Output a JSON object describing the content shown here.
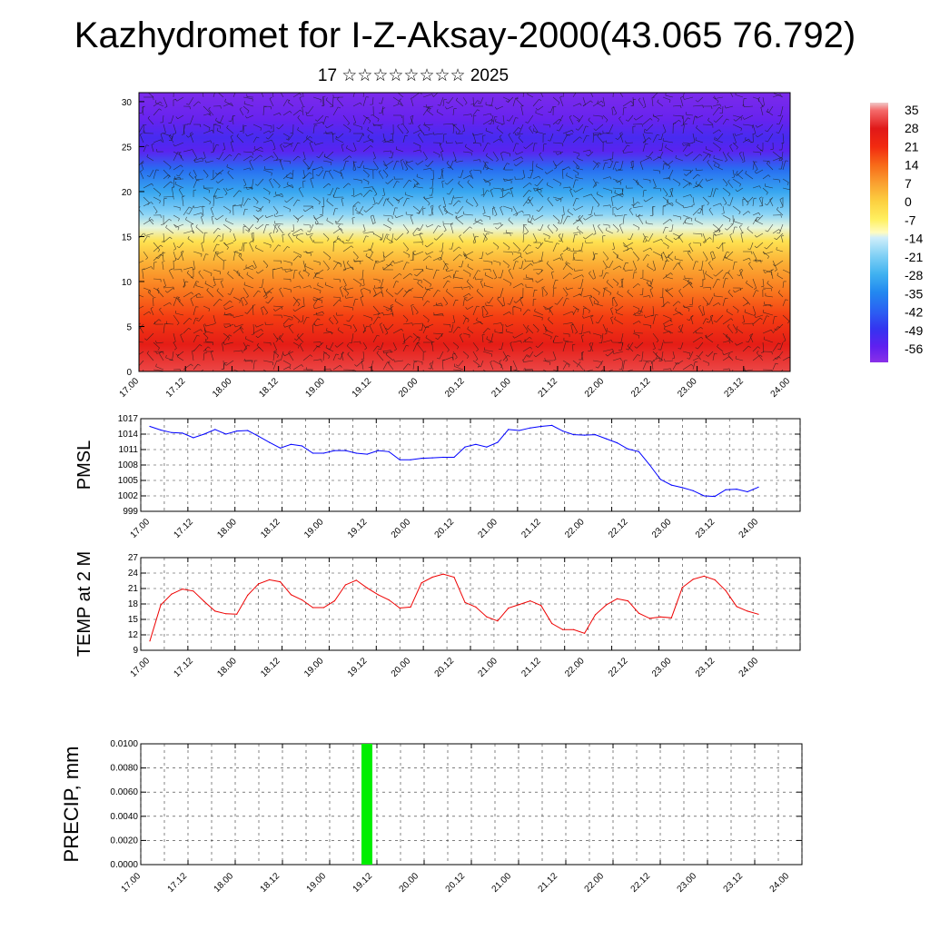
{
  "title": "Kazhydromet for I-Z-Aksay-2000(43.065 76.792)",
  "subtitle": "17 ☆☆☆☆☆☆☆☆ 2025",
  "time_ticks": [
    "17.00",
    "17.12",
    "18.00",
    "18.12",
    "19.00",
    "19.12",
    "20.00",
    "20.12",
    "21.00",
    "21.12",
    "22.00",
    "22.12",
    "23.00",
    "23.12",
    "24.00"
  ],
  "chart_data": [
    {
      "type": "heatmap",
      "name": "vertical-cross-section",
      "description_of_fill": "temperature with wind barbs by level and time",
      "x_ticks": [
        "17.00",
        "17.12",
        "18.00",
        "18.12",
        "19.00",
        "19.12",
        "20.00",
        "20.12",
        "21.00",
        "21.12",
        "22.00",
        "22.12",
        "23.00",
        "23.12",
        "24.00"
      ],
      "y_ticks": [
        0,
        5,
        10,
        15,
        20,
        25,
        30
      ],
      "ylim": [
        0,
        31
      ],
      "bands": [
        {
          "y": 0,
          "t": 32
        },
        {
          "y": 3,
          "t": 26
        },
        {
          "y": 6,
          "t": 19
        },
        {
          "y": 9,
          "t": 12
        },
        {
          "y": 12,
          "t": 5
        },
        {
          "y": 14.5,
          "t": -4
        },
        {
          "y": 16,
          "t": -13
        },
        {
          "y": 17.5,
          "t": -20
        },
        {
          "y": 20,
          "t": -30
        },
        {
          "y": 22.5,
          "t": -40
        },
        {
          "y": 24.5,
          "t": -55
        },
        {
          "y": 26,
          "t": -52
        },
        {
          "y": 28,
          "t": -57
        },
        {
          "y": 31,
          "t": -60
        }
      ],
      "colorbar": {
        "labels": [
          "35",
          "28",
          "21",
          "14",
          "7",
          "0",
          "-7",
          "-14",
          "-21",
          "-28",
          "-35",
          "-42",
          "-49",
          "-56"
        ],
        "stops": [
          {
            "v": 38,
            "color": "#f0c8c8"
          },
          {
            "v": 35,
            "color": "#f46a6a"
          },
          {
            "v": 28,
            "color": "#e01818"
          },
          {
            "v": 21,
            "color": "#f22a10"
          },
          {
            "v": 14,
            "color": "#f86a18"
          },
          {
            "v": 7,
            "color": "#faa030"
          },
          {
            "v": 0,
            "color": "#fcd040"
          },
          {
            "v": -7,
            "color": "#fff060"
          },
          {
            "v": -12,
            "color": "#fffbc0"
          },
          {
            "v": -14,
            "color": "#cfeefa"
          },
          {
            "v": -21,
            "color": "#80d0f5"
          },
          {
            "v": -28,
            "color": "#40b2f0"
          },
          {
            "v": -35,
            "color": "#2288f0"
          },
          {
            "v": -42,
            "color": "#2a62f2"
          },
          {
            "v": -49,
            "color": "#3434f0"
          },
          {
            "v": -56,
            "color": "#6020f0"
          },
          {
            "v": -62,
            "color": "#8a30e8"
          }
        ]
      }
    },
    {
      "type": "line",
      "name": "PMSL",
      "ylabel": "PMSL",
      "color": "#0000ff",
      "y_ticks": [
        "1017",
        "1014",
        "1011",
        "1008",
        "1005",
        "1002",
        "999"
      ],
      "ylim": [
        999,
        1017
      ],
      "x": [
        "17.00",
        "17.03",
        "17.06",
        "17.09",
        "17.12",
        "17.15",
        "17.18",
        "17.21",
        "18.00",
        "18.03",
        "18.06",
        "18.09",
        "18.12",
        "18.15",
        "18.18",
        "18.21",
        "19.00",
        "19.03",
        "19.06",
        "19.09",
        "19.12",
        "19.15",
        "19.18",
        "19.21",
        "20.00",
        "20.03",
        "20.06",
        "20.09",
        "20.12",
        "20.15",
        "20.18",
        "20.21",
        "21.00",
        "21.03",
        "21.06",
        "21.09",
        "21.12",
        "21.15",
        "21.18",
        "21.21",
        "22.00",
        "22.03",
        "22.06",
        "22.09",
        "22.12",
        "22.15",
        "22.18",
        "22.21",
        "23.00",
        "23.03",
        "23.06",
        "23.09",
        "23.12",
        "23.15",
        "23.18",
        "23.21",
        "24.00"
      ],
      "values": [
        1015.5,
        1014.8,
        1014.3,
        1014.2,
        1013.3,
        1014.0,
        1014.9,
        1014.0,
        1014.6,
        1014.7,
        1013.6,
        1012.4,
        1011.3,
        1012.0,
        1011.7,
        1010.3,
        1010.3,
        1010.8,
        1010.8,
        1010.3,
        1010.1,
        1010.8,
        1010.6,
        1009.0,
        1009.0,
        1009.3,
        1009.4,
        1009.5,
        1009.5,
        1011.5,
        1012.0,
        1011.5,
        1012.4,
        1014.9,
        1014.7,
        1015.2,
        1015.5,
        1015.7,
        1014.6,
        1013.9,
        1013.8,
        1013.9,
        1013.1,
        1012.3,
        1011.1,
        1010.6,
        1008.0,
        1005.2,
        1004.1,
        1003.6,
        1003.0,
        1002.0,
        1001.9,
        1003.2,
        1003.3,
        1002.8,
        1003.7
      ]
    },
    {
      "type": "line",
      "name": "TEMP at 2 M",
      "ylabel": "TEMP at 2 M",
      "color": "#ee0000",
      "y_ticks": [
        "27",
        "24",
        "21",
        "18",
        "15",
        "12",
        "9"
      ],
      "ylim": [
        9,
        27
      ],
      "x": [
        "17.00",
        "17.03",
        "17.06",
        "17.09",
        "17.12",
        "17.15",
        "17.18",
        "17.21",
        "18.00",
        "18.03",
        "18.06",
        "18.09",
        "18.12",
        "18.15",
        "18.18",
        "18.21",
        "19.00",
        "19.03",
        "19.06",
        "19.09",
        "19.12",
        "19.15",
        "19.18",
        "19.21",
        "20.00",
        "20.03",
        "20.06",
        "20.09",
        "20.12",
        "20.15",
        "20.18",
        "20.21",
        "21.00",
        "21.03",
        "21.06",
        "21.09",
        "21.12",
        "21.15",
        "21.18",
        "21.21",
        "22.00",
        "22.03",
        "22.06",
        "22.09",
        "22.12",
        "22.15",
        "22.18",
        "22.21",
        "23.00",
        "23.03",
        "23.06",
        "23.09",
        "23.12",
        "23.15",
        "23.18",
        "23.21",
        "24.00"
      ],
      "values": [
        10.8,
        17.8,
        19.9,
        20.9,
        20.5,
        18.5,
        16.6,
        16.1,
        16.0,
        19.7,
        21.9,
        22.7,
        22.3,
        19.8,
        18.8,
        17.3,
        17.3,
        18.6,
        21.7,
        22.6,
        21.1,
        19.8,
        18.8,
        17.2,
        17.4,
        22.1,
        23.2,
        23.8,
        23.2,
        18.3,
        17.4,
        15.5,
        14.7,
        17.2,
        17.9,
        18.6,
        17.7,
        14.2,
        13.0,
        13.0,
        12.3,
        15.9,
        17.8,
        19.0,
        18.6,
        16.2,
        15.2,
        15.5,
        15.3,
        21.2,
        22.8,
        23.4,
        22.7,
        20.6,
        17.5,
        16.6,
        16.0
      ]
    },
    {
      "type": "bar",
      "name": "PRECIP",
      "ylabel": "PRECIP, mm",
      "color": "#00ee00",
      "y_ticks": [
        "0.0100",
        "0.0080",
        "0.0060",
        "0.0040",
        "0.0020",
        "0.0000"
      ],
      "ylim": [
        0,
        0.01
      ],
      "bars": [
        {
          "x": "19.12",
          "value": 0.01
        }
      ]
    }
  ]
}
